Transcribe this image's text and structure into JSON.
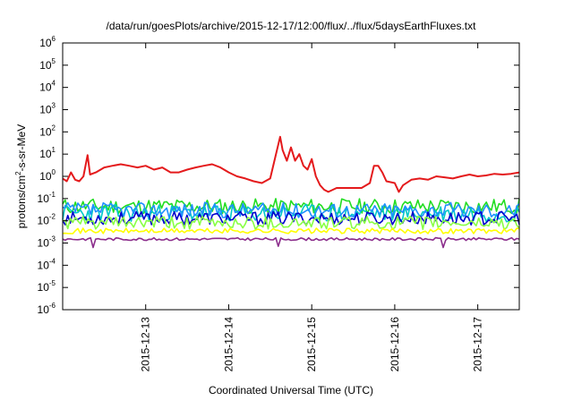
{
  "chart_data": {
    "type": "line",
    "title": "/data/run/goesPlots/archive/2015-12-17/12:00/flux/../flux/5daysEarthFluxes.txt",
    "xlabel": "Coordinated Universal Time (UTC)",
    "ylabel": {
      "base": "protons/cm",
      "sup": "2",
      "rest": "-s-sr-MeV"
    },
    "yscale": "log",
    "ylim_exp": [
      -6,
      6
    ],
    "y_ticks": [
      {
        "base": "10",
        "exp": "-6"
      },
      {
        "base": "10",
        "exp": "-5"
      },
      {
        "base": "10",
        "exp": "-4"
      },
      {
        "base": "10",
        "exp": "-3"
      },
      {
        "base": "10",
        "exp": "-2"
      },
      {
        "base": "10",
        "exp": "-1"
      },
      {
        "base": "10",
        "exp": "0"
      },
      {
        "base": "10",
        "exp": "1"
      },
      {
        "base": "10",
        "exp": "2"
      },
      {
        "base": "10",
        "exp": "3"
      },
      {
        "base": "10",
        "exp": "4"
      },
      {
        "base": "10",
        "exp": "5"
      },
      {
        "base": "10",
        "exp": "6"
      }
    ],
    "xlim_days": [
      12.0,
      17.5
    ],
    "x_ticks": [
      {
        "label": "2015-12-13",
        "day": 13
      },
      {
        "label": "2015-12-14",
        "day": 14
      },
      {
        "label": "2015-12-15",
        "day": 15
      },
      {
        "label": "2015-12-16",
        "day": 16
      },
      {
        "label": "2015-12-17",
        "day": 17
      }
    ],
    "grid": false,
    "legend": "none",
    "series": [
      {
        "color": "#e41a1c",
        "points": [
          [
            12.0,
            0.8
          ],
          [
            12.05,
            0.6
          ],
          [
            12.1,
            1.5
          ],
          [
            12.15,
            0.7
          ],
          [
            12.2,
            0.6
          ],
          [
            12.25,
            1.0
          ],
          [
            12.3,
            9
          ],
          [
            12.33,
            1.2
          ],
          [
            12.4,
            1.5
          ],
          [
            12.5,
            2.5
          ],
          [
            12.6,
            3
          ],
          [
            12.7,
            3.5
          ],
          [
            12.8,
            3
          ],
          [
            12.9,
            2.5
          ],
          [
            13.0,
            3
          ],
          [
            13.1,
            2
          ],
          [
            13.2,
            2.5
          ],
          [
            13.3,
            1.5
          ],
          [
            13.4,
            1.5
          ],
          [
            13.5,
            2
          ],
          [
            13.6,
            2.5
          ],
          [
            13.7,
            3
          ],
          [
            13.8,
            3.5
          ],
          [
            13.9,
            2.5
          ],
          [
            14.0,
            1.5
          ],
          [
            14.1,
            1.0
          ],
          [
            14.2,
            0.8
          ],
          [
            14.3,
            0.6
          ],
          [
            14.4,
            0.5
          ],
          [
            14.5,
            0.8
          ],
          [
            14.55,
            5
          ],
          [
            14.6,
            30
          ],
          [
            14.62,
            60
          ],
          [
            14.65,
            15
          ],
          [
            14.7,
            5
          ],
          [
            14.75,
            20
          ],
          [
            14.8,
            5
          ],
          [
            14.85,
            10
          ],
          [
            14.9,
            3
          ],
          [
            14.95,
            2
          ],
          [
            15.0,
            6
          ],
          [
            15.05,
            1.0
          ],
          [
            15.1,
            0.4
          ],
          [
            15.15,
            0.25
          ],
          [
            15.2,
            0.2
          ],
          [
            15.3,
            0.3
          ],
          [
            15.4,
            0.3
          ],
          [
            15.5,
            0.3
          ],
          [
            15.6,
            0.3
          ],
          [
            15.7,
            0.5
          ],
          [
            15.75,
            3
          ],
          [
            15.8,
            3
          ],
          [
            15.85,
            1.5
          ],
          [
            15.9,
            0.6
          ],
          [
            16.0,
            0.5
          ],
          [
            16.05,
            0.2
          ],
          [
            16.1,
            0.4
          ],
          [
            16.2,
            0.7
          ],
          [
            16.3,
            0.8
          ],
          [
            16.4,
            0.7
          ],
          [
            16.5,
            1.0
          ],
          [
            16.6,
            0.9
          ],
          [
            16.7,
            0.8
          ],
          [
            16.8,
            1.0
          ],
          [
            16.9,
            1.2
          ],
          [
            17.0,
            1.0
          ],
          [
            17.1,
            1.1
          ],
          [
            17.2,
            1.3
          ],
          [
            17.3,
            1.2
          ],
          [
            17.4,
            1.3
          ],
          [
            17.5,
            1.5
          ]
        ]
      },
      {
        "color": "#22dd22",
        "base": 0.045,
        "amp": 0.35,
        "seed": 11
      },
      {
        "color": "#00c8c8",
        "base": 0.022,
        "amp": 0.4,
        "seed": 23
      },
      {
        "color": "#1e90ff",
        "base": 0.03,
        "amp": 0.35,
        "seed": 37
      },
      {
        "color": "#0000cc",
        "base": 0.013,
        "amp": 0.3,
        "seed": 53
      },
      {
        "color": "#88ff44",
        "base": 0.008,
        "amp": 0.3,
        "seed": 61
      },
      {
        "color": "#ffff00",
        "base": 0.0035,
        "amp": 0.12,
        "seed": 71
      },
      {
        "color": "#8b2d8b",
        "base": 0.0015,
        "amp": 0.06,
        "seed": 83
      }
    ]
  }
}
